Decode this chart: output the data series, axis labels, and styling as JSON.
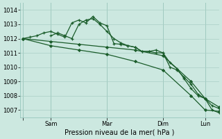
{
  "bg_color": "#cce8e0",
  "grid_color": "#aacfc5",
  "line_color": "#1a5c2a",
  "ylim": [
    1006.5,
    1014.5
  ],
  "yticks": [
    1007,
    1008,
    1009,
    1010,
    1011,
    1012,
    1013,
    1014
  ],
  "xlabel": "Pression niveau de la mer( hPa )",
  "xtick_labels": [
    "",
    "Sam",
    "Mar",
    "Dim",
    "Lun"
  ],
  "xtick_positions": [
    0,
    24,
    72,
    120,
    156
  ],
  "xlim": [
    -2,
    168
  ],
  "line1_x": [
    0,
    6,
    12,
    18,
    24,
    30,
    36,
    42,
    48,
    54,
    60,
    66,
    72,
    78,
    84,
    90,
    96,
    102,
    108,
    114,
    120,
    126,
    132,
    138,
    144,
    150,
    156,
    162,
    168
  ],
  "line1_y": [
    1012.0,
    1012.1,
    1012.2,
    1012.4,
    1012.5,
    1012.3,
    1012.1,
    1013.1,
    1013.3,
    1013.1,
    1013.55,
    1013.1,
    1012.9,
    1011.65,
    1011.6,
    1011.5,
    1011.4,
    1011.1,
    1011.1,
    1011.2,
    1011.0,
    1010.0,
    1009.8,
    1009.3,
    1008.8,
    1008.1,
    1007.8,
    1007.3,
    1007.1
  ],
  "line2_x": [
    24,
    30,
    36,
    42,
    48,
    54,
    60,
    66,
    72,
    78,
    84,
    90,
    96,
    102,
    108,
    114,
    120,
    126,
    132,
    138,
    144,
    150,
    156,
    162,
    168
  ],
  "line2_y": [
    1012.2,
    1012.4,
    1012.2,
    1012.0,
    1013.0,
    1013.3,
    1013.4,
    1013.0,
    1012.5,
    1012.0,
    1011.7,
    1011.5,
    1011.4,
    1011.1,
    1011.1,
    1011.0,
    1011.0,
    1010.3,
    1009.9,
    1009.2,
    1008.5,
    1008.0,
    1007.8,
    1007.0,
    1006.8
  ],
  "line3_x": [
    0,
    24,
    48,
    72,
    96,
    120,
    144,
    156,
    168
  ],
  "line3_y": [
    1012.0,
    1011.8,
    1011.6,
    1011.4,
    1011.2,
    1010.8,
    1009.0,
    1007.8,
    1007.2
  ],
  "line4_x": [
    0,
    24,
    48,
    72,
    96,
    120,
    144,
    156,
    168
  ],
  "line4_y": [
    1012.0,
    1011.5,
    1011.2,
    1010.9,
    1010.4,
    1009.8,
    1008.0,
    1007.0,
    1006.9
  ]
}
